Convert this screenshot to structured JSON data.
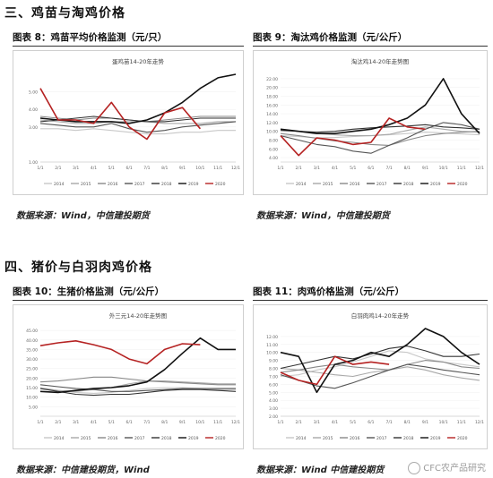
{
  "sections": [
    {
      "title": "三、鸡苗与淘鸡价格"
    },
    {
      "title": "四、猪价与白羽肉鸡价格"
    }
  ],
  "panels": [
    {
      "label": "图表 8：鸡苗平均价格监测（元/只）",
      "source": "数据来源：Wind，中信建投期货"
    },
    {
      "label": "图表 9：淘汰鸡价格监测（元/公斤）",
      "source": "数据来源：Wind，中信建投期货"
    },
    {
      "label": "图表 10：生猪价格监测（元/公斤）",
      "source": "数据来源：中信建投期货，Wind"
    },
    {
      "label": "图表 11：肉鸡价格监测（元/公斤）",
      "source": "数据来源：Wind 中信建投期货"
    }
  ],
  "watermark": "CFC农产品研究",
  "chart_data": [
    {
      "type": "line",
      "title": "蛋鸡苗14-20年走势",
      "x": [
        "1/1",
        "2/1",
        "3/1",
        "4/1",
        "5/1",
        "6/1",
        "7/1",
        "8/1",
        "9/1",
        "10/1",
        "11/1",
        "12/1"
      ],
      "yticks": [
        "1.00",
        "3.00",
        "4.00",
        "5.00"
      ],
      "ylim": [
        1,
        6
      ],
      "series": [
        {
          "name": "2014",
          "color": "#c8c8c8",
          "values": [
            2.9,
            2.9,
            2.8,
            2.9,
            2.8,
            2.7,
            2.6,
            2.6,
            2.7,
            2.7,
            2.8,
            2.8
          ]
        },
        {
          "name": "2015",
          "color": "#a8a8a8",
          "values": [
            3.4,
            3.3,
            3.2,
            3.2,
            3.3,
            3.3,
            3.3,
            3.2,
            3.2,
            3.2,
            3.3,
            3.3
          ]
        },
        {
          "name": "2016",
          "color": "#888888",
          "values": [
            3.6,
            3.5,
            3.4,
            3.5,
            3.5,
            3.4,
            3.3,
            3.4,
            3.5,
            3.6,
            3.6,
            3.6
          ]
        },
        {
          "name": "2017",
          "color": "#555555",
          "values": [
            3.2,
            3.1,
            3.0,
            3.0,
            3.2,
            2.9,
            2.7,
            2.8,
            3.0,
            3.1,
            3.2,
            3.3
          ]
        },
        {
          "name": "2018",
          "color": "#333333",
          "values": [
            3.3,
            3.4,
            3.5,
            3.6,
            3.5,
            3.4,
            3.3,
            3.3,
            3.4,
            3.5,
            3.5,
            3.5
          ]
        },
        {
          "name": "2019",
          "color": "#111111",
          "values": [
            3.5,
            3.4,
            3.3,
            3.3,
            3.3,
            3.2,
            3.4,
            3.8,
            4.4,
            5.2,
            5.8,
            6.0
          ]
        },
        {
          "name": "2020",
          "color": "#b52222",
          "values": [
            5.2,
            3.4,
            3.4,
            3.2,
            4.4,
            3.0,
            2.3,
            3.8,
            4.1,
            2.9,
            null,
            null
          ]
        }
      ]
    },
    {
      "type": "line",
      "title": "淘汰鸡14-20年走势图",
      "x": [
        "1/1",
        "2/1",
        "3/1",
        "4/1",
        "5/1",
        "6/1",
        "7/1",
        "8/1",
        "9/1",
        "10/1",
        "11/1",
        "12/1"
      ],
      "yticks": [
        "4.00",
        "6.00",
        "8.00",
        "10.00",
        "12.00",
        "14.00",
        "16.00",
        "18.00",
        "20.00",
        "22.00"
      ],
      "ylim": [
        3,
        23
      ],
      "series": [
        {
          "name": "2014",
          "color": "#c8c8c8",
          "values": [
            9.0,
            8.8,
            8.5,
            8.6,
            8.8,
            9.0,
            9.2,
            9.5,
            9.8,
            9.6,
            9.4,
            9.2
          ]
        },
        {
          "name": "2015",
          "color": "#a8a8a8",
          "values": [
            10.5,
            10.0,
            9.5,
            9.2,
            9.0,
            9.0,
            9.3,
            10.2,
            11.0,
            10.5,
            10.0,
            9.8
          ]
        },
        {
          "name": "2016",
          "color": "#888888",
          "values": [
            9.5,
            9.0,
            8.4,
            7.8,
            7.5,
            7.0,
            6.8,
            8.0,
            9.0,
            9.5,
            9.8,
            10.0
          ]
        },
        {
          "name": "2017",
          "color": "#555555",
          "values": [
            9.0,
            8.0,
            7.0,
            6.5,
            5.5,
            5.0,
            6.8,
            8.5,
            10.5,
            12.0,
            11.5,
            10.5
          ]
        },
        {
          "name": "2018",
          "color": "#333333",
          "values": [
            10.2,
            10.0,
            9.8,
            10.0,
            10.5,
            10.8,
            11.0,
            11.2,
            11.5,
            11.0,
            10.8,
            10.5
          ]
        },
        {
          "name": "2019",
          "color": "#111111",
          "values": [
            10.5,
            10.0,
            9.5,
            9.5,
            10.0,
            10.5,
            11.5,
            13.0,
            16.0,
            22.0,
            14.0,
            9.5
          ]
        },
        {
          "name": "2020",
          "color": "#b52222",
          "values": [
            9.0,
            4.5,
            8.5,
            8.0,
            7.0,
            7.5,
            13.0,
            11.0,
            10.5,
            null,
            null,
            null
          ]
        }
      ]
    },
    {
      "type": "line",
      "title": "外三元14-20年走势图",
      "x": [
        "1/1",
        "2/1",
        "3/1",
        "4/1",
        "5/1",
        "6/1",
        "7/1",
        "8/1",
        "9/1",
        "10/1",
        "11/1",
        "12/1"
      ],
      "yticks": [
        "5.00",
        "10.00",
        "15.00",
        "20.00",
        "25.00",
        "30.00",
        "35.00",
        "40.00",
        "45.00"
      ],
      "ylim": [
        0,
        46
      ],
      "series": [
        {
          "name": "2014",
          "color": "#c8c8c8",
          "values": [
            15.0,
            13.5,
            12.5,
            12.0,
            12.5,
            13.5,
            14.5,
            15.0,
            15.0,
            14.5,
            14.0,
            14.0
          ]
        },
        {
          "name": "2015",
          "color": "#a8a8a8",
          "values": [
            14.5,
            13.5,
            13.0,
            14.0,
            15.0,
            17.0,
            18.5,
            18.5,
            18.0,
            17.5,
            17.0,
            17.0
          ]
        },
        {
          "name": "2016",
          "color": "#888888",
          "values": [
            18.0,
            18.5,
            19.5,
            20.5,
            20.5,
            19.5,
            18.5,
            18.0,
            17.5,
            17.0,
            16.5,
            16.5
          ]
        },
        {
          "name": "2017",
          "color": "#555555",
          "values": [
            16.5,
            15.5,
            14.5,
            14.0,
            13.0,
            13.0,
            13.5,
            14.0,
            14.5,
            14.5,
            14.5,
            14.5
          ]
        },
        {
          "name": "2018",
          "color": "#333333",
          "values": [
            14.5,
            13.0,
            11.5,
            11.0,
            11.5,
            11.5,
            12.5,
            13.5,
            14.0,
            14.0,
            13.5,
            13.0
          ]
        },
        {
          "name": "2019",
          "color": "#111111",
          "values": [
            13.0,
            12.5,
            13.5,
            14.5,
            15.0,
            16.0,
            18.0,
            24.5,
            33.0,
            41.0,
            35.0,
            35.0
          ]
        },
        {
          "name": "2020",
          "color": "#b52222",
          "values": [
            37.0,
            38.5,
            39.5,
            37.5,
            35.0,
            30.0,
            27.5,
            35.0,
            38.0,
            37.5,
            null,
            null
          ]
        }
      ]
    },
    {
      "type": "line",
      "title": "白羽肉鸡14-20年走势",
      "x": [
        "1/1",
        "2/1",
        "3/1",
        "4/1",
        "5/1",
        "6/1",
        "7/1",
        "8/1",
        "9/1",
        "10/1",
        "11/1",
        "12/1"
      ],
      "yticks": [
        "2.00",
        "3.00",
        "4.00",
        "5.00",
        "6.00",
        "7.00",
        "8.00",
        "9.00",
        "10.00",
        "11.00",
        "12.00"
      ],
      "ylim": [
        2,
        13
      ],
      "series": [
        {
          "name": "2014",
          "color": "#c8c8c8",
          "values": [
            7.0,
            7.2,
            7.8,
            8.2,
            8.8,
            9.5,
            10.2,
            10.0,
            9.2,
            8.8,
            8.5,
            8.2
          ]
        },
        {
          "name": "2015",
          "color": "#a8a8a8",
          "values": [
            8.0,
            7.8,
            7.5,
            7.2,
            7.0,
            7.5,
            7.8,
            8.2,
            7.8,
            7.2,
            6.8,
            6.5
          ]
        },
        {
          "name": "2016",
          "color": "#888888",
          "values": [
            7.5,
            7.8,
            8.2,
            8.5,
            8.2,
            8.0,
            7.8,
            8.5,
            9.0,
            8.8,
            8.2,
            8.0
          ]
        },
        {
          "name": "2017",
          "color": "#555555",
          "values": [
            7.2,
            6.5,
            5.8,
            5.5,
            6.2,
            7.0,
            7.8,
            8.5,
            8.2,
            7.8,
            7.5,
            7.2
          ]
        },
        {
          "name": "2018",
          "color": "#333333",
          "values": [
            8.0,
            8.5,
            9.0,
            9.5,
            9.2,
            9.8,
            10.5,
            10.8,
            10.2,
            9.5,
            9.5,
            9.8
          ]
        },
        {
          "name": "2019",
          "color": "#111111",
          "values": [
            10.0,
            9.5,
            5.0,
            8.5,
            9.0,
            10.0,
            9.5,
            11.0,
            13.0,
            12.0,
            10.0,
            8.5
          ]
        },
        {
          "name": "2020",
          "color": "#b52222",
          "values": [
            7.5,
            6.5,
            6.0,
            9.5,
            8.5,
            8.8,
            8.5,
            null,
            null,
            null,
            null,
            null
          ]
        }
      ]
    }
  ]
}
